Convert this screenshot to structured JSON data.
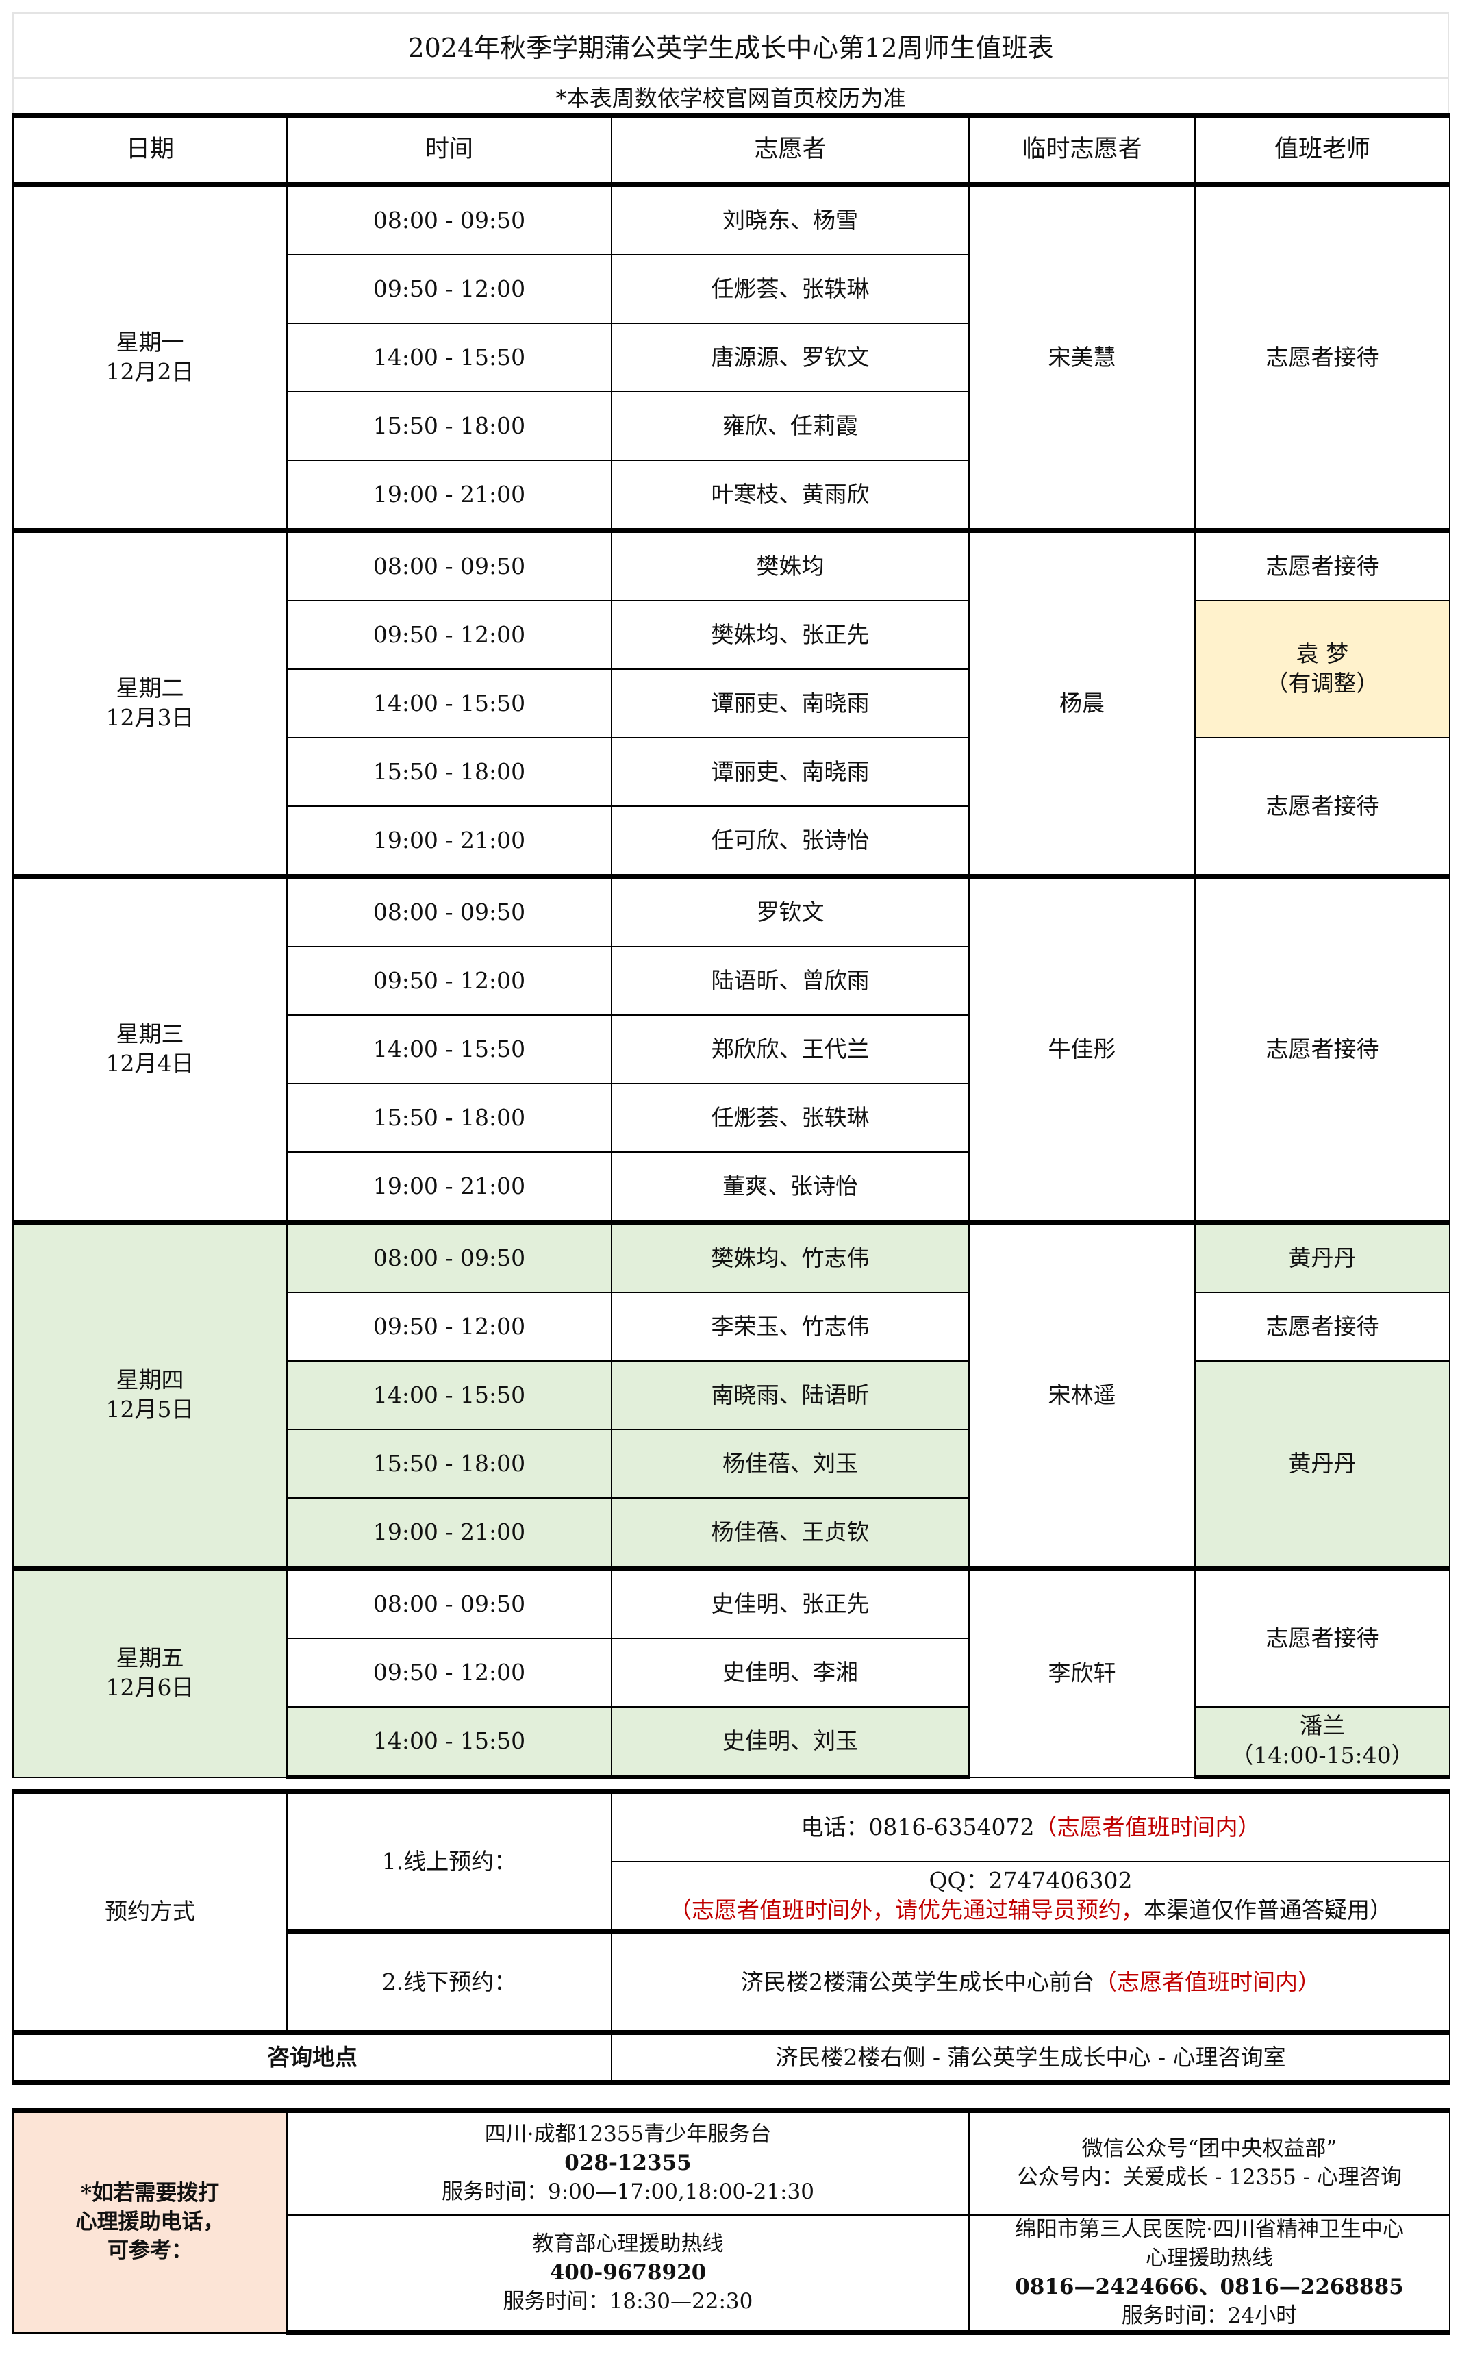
{
  "title": "2024年秋季学期蒲公英学生成长中心第12周师生值班表",
  "subtitle": "*本表周数依学校官网首页校历为准",
  "headers": [
    "日期",
    "时间",
    "志愿者",
    "临时志愿者",
    "值班老师"
  ],
  "colors": {
    "thursday_highlight": "#E2EFDA",
    "adjusted_highlight": "#FFF2CC",
    "hotline_label": "#FCE4D6",
    "note_red": "#C00000"
  },
  "days": [
    {
      "weekday": "星期一",
      "date": "12月2日",
      "highlight": false,
      "temp_volunteer": "宋美慧",
      "slots": [
        {
          "time": "08:00  -  09:50",
          "volunteers": "刘晓东、杨雪",
          "highlight": false
        },
        {
          "time": "09:50  -  12:00",
          "volunteers": "任烿荟、张轶琳",
          "highlight": false
        },
        {
          "time": "14:00  -  15:50",
          "volunteers": "唐源源、罗钦文",
          "highlight": false
        },
        {
          "time": "15:50  -  18:00",
          "volunteers": "雍欣、任莉霞",
          "highlight": false
        },
        {
          "time": "19:00  -  21:00",
          "volunteers": "叶寒枝、黄雨欣",
          "highlight": false
        }
      ],
      "teachers": [
        {
          "text": "志愿者接待",
          "span": 5,
          "highlight": ""
        }
      ]
    },
    {
      "weekday": "星期二",
      "date": "12月3日",
      "highlight": false,
      "temp_volunteer": "杨晨",
      "slots": [
        {
          "time": "08:00  -  09:50",
          "volunteers": "樊姝均",
          "highlight": false
        },
        {
          "time": "09:50  -  12:00",
          "volunteers": "樊姝均、张正先",
          "highlight": false
        },
        {
          "time": "14:00  -  15:50",
          "volunteers": "谭丽吏、南晓雨",
          "highlight": false
        },
        {
          "time": "15:50  -  18:00",
          "volunteers": "谭丽吏、南晓雨",
          "highlight": false
        },
        {
          "time": "19:00  -  21:00",
          "volunteers": "任可欣、张诗怡",
          "highlight": false
        }
      ],
      "teachers": [
        {
          "text": "志愿者接待",
          "span": 1,
          "highlight": ""
        },
        {
          "text": "袁  梦",
          "note": "（有调整）",
          "span": 2,
          "highlight": "yellow"
        },
        {
          "text": "志愿者接待",
          "span": 2,
          "highlight": ""
        }
      ]
    },
    {
      "weekday": "星期三",
      "date": "12月4日",
      "highlight": false,
      "temp_volunteer": "牛佳彤",
      "slots": [
        {
          "time": "08:00  -  09:50",
          "volunteers": "罗钦文",
          "highlight": false
        },
        {
          "time": "09:50  -  12:00",
          "volunteers": "陆语昕、曾欣雨",
          "highlight": false
        },
        {
          "time": "14:00  -  15:50",
          "volunteers": "郑欣欣、王代兰",
          "highlight": false
        },
        {
          "time": "15:50  -  18:00",
          "volunteers": "任烿荟、张轶琳",
          "highlight": false
        },
        {
          "time": "19:00  -  21:00",
          "volunteers": "董爽、张诗怡",
          "highlight": false
        }
      ],
      "teachers": [
        {
          "text": "志愿者接待",
          "span": 5,
          "highlight": ""
        }
      ]
    },
    {
      "weekday": "星期四",
      "date": "12月5日",
      "highlight": true,
      "temp_volunteer": "宋林遥",
      "slots": [
        {
          "time": "08:00  -  09:50",
          "volunteers": "樊姝均、竹志伟",
          "highlight": true
        },
        {
          "time": "09:50  -  12:00",
          "volunteers": "李荣玉、竹志伟",
          "highlight": false
        },
        {
          "time": "14:00  -  15:50",
          "volunteers": "南晓雨、陆语昕",
          "highlight": true
        },
        {
          "time": "15:50  -  18:00",
          "volunteers": "杨佳蓓、刘玉",
          "highlight": true
        },
        {
          "time": "19:00  -  21:00",
          "volunteers": "杨佳蓓、王贞钦",
          "highlight": true
        }
      ],
      "teachers": [
        {
          "text": "黄丹丹",
          "span": 1,
          "highlight": "green"
        },
        {
          "text": "志愿者接待",
          "span": 1,
          "highlight": ""
        },
        {
          "text": "黄丹丹",
          "span": 3,
          "highlight": "green"
        }
      ]
    },
    {
      "weekday": "星期五",
      "date": "12月6日",
      "highlight": true,
      "temp_volunteer": "李欣轩",
      "slots": [
        {
          "time": "08:00  -  09:50",
          "volunteers": "史佳明、张正先",
          "highlight": false
        },
        {
          "time": "09:50  -  12:00",
          "volunteers": "史佳明、李湘",
          "highlight": false
        },
        {
          "time": "14:00  -  15:50",
          "volunteers": "史佳明、刘玉",
          "highlight": true
        }
      ],
      "teachers": [
        {
          "text": "志愿者接待",
          "span": 2,
          "highlight": ""
        },
        {
          "text": "潘兰",
          "note": "（14:00-15:40）",
          "span": 1,
          "highlight": "green"
        }
      ]
    }
  ],
  "appointment": {
    "label": "预约方式",
    "online_label": "1.线上预约：",
    "phone": "电话：0816-6354072",
    "phone_note": "（志愿者值班时间内）",
    "qq": "QQ：2747406302",
    "qq_note_red": "（志愿者值班时间外，请优先通过辅导员预约，",
    "qq_note_black": "本渠道仅作普通答疑用）",
    "offline_label": "2.线下预约：",
    "offline_place": "济民楼2楼蒲公英学生成长中心前台",
    "offline_note": "（志愿者值班时间内）",
    "location_label": "咨询地点",
    "location": "济民楼2楼右侧 - 蒲公英学生成长中心 - 心理咨询室"
  },
  "hotlines": {
    "label_lines": [
      "*如若需要拨打",
      "心理援助电话，",
      "可参考："
    ],
    "items": [
      {
        "lines": [
          "四川·成都12355青少年服务台",
          "028-12355",
          "服务时间：9:00—17:00,18:00-21:30"
        ]
      },
      {
        "lines": [
          "微信公众号“团中央权益部”",
          "公众号内：关爱成长 - 12355 - 心理咨询"
        ]
      },
      {
        "lines": [
          "教育部心理援助热线",
          "400-9678920",
          "服务时间：18:30—22:30"
        ]
      },
      {
        "lines": [
          "绵阳市第三人民医院·四川省精神卫生中心",
          "心理援助热线",
          "0816—2424666、0816—2268885",
          "服务时间：24小时"
        ]
      }
    ]
  }
}
